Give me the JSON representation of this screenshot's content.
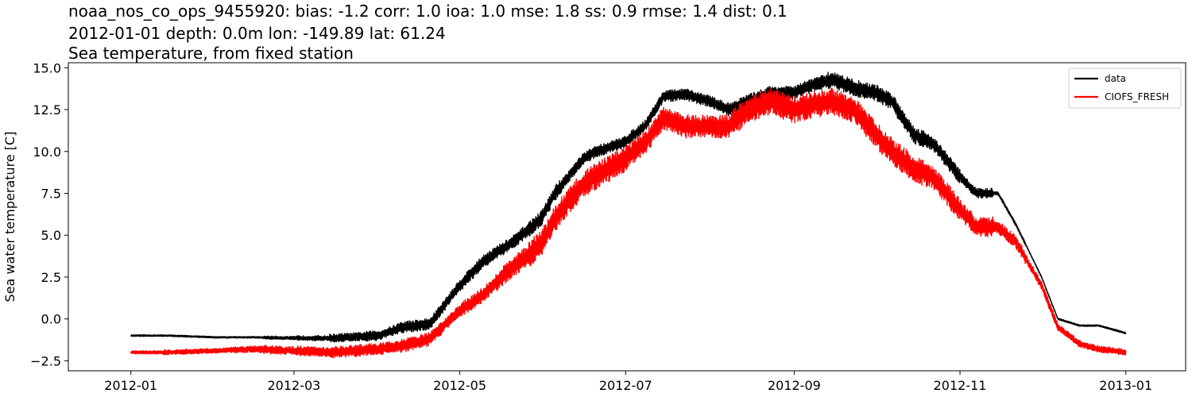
{
  "chart_data": {
    "type": "line",
    "title_lines": [
      "noaa_nos_co_ops_9455920: bias: -1.2  corr: 1.0  ioa: 1.0  mse: 1.8  ss: 0.9  rmse: 1.4  dist: 0.1",
      "2012-01-01 depth: 0.0m lon: -149.89 lat: 61.24",
      "Sea temperature, from fixed station"
    ],
    "xlabel": "",
    "ylabel": "Sea water temperature [C]",
    "xlim": [
      "2011-12-09",
      "2013-01-23"
    ],
    "ylim": [
      -3.1,
      15.3
    ],
    "x_ticks": [
      "2012-01",
      "2012-03",
      "2012-05",
      "2012-07",
      "2012-09",
      "2012-11",
      "2013-01"
    ],
    "y_ticks": [
      -2.5,
      0.0,
      2.5,
      5.0,
      7.5,
      10.0,
      12.5,
      15.0
    ],
    "y_tick_labels": [
      "−2.5",
      "0.0",
      "2.5",
      "5.0",
      "7.5",
      "10.0",
      "12.5",
      "15.0"
    ],
    "grid": false,
    "legend_position": "top-right",
    "series": [
      {
        "name": "data",
        "color": "#000000",
        "noise": [
          0.05,
          0.05,
          0.05,
          0.05,
          0.1,
          0.15,
          0.25,
          0.3,
          0.35,
          0.35,
          0.4,
          0.4,
          0.45,
          0.35,
          0.35,
          0.35,
          0.35,
          0.35,
          0.4,
          0.4,
          0.4,
          0.5,
          0.5,
          0.5,
          0.45,
          0.3,
          0.1,
          0.05,
          0.05,
          0.05
        ],
        "points": [
          [
            "2012-01-01",
            -1.0
          ],
          [
            "2012-01-15",
            -1.0
          ],
          [
            "2012-02-01",
            -1.1
          ],
          [
            "2012-02-15",
            -1.1
          ],
          [
            "2012-03-01",
            -1.15
          ],
          [
            "2012-03-15",
            -1.15
          ],
          [
            "2012-04-01",
            -1.0
          ],
          [
            "2012-04-10",
            -0.5
          ],
          [
            "2012-04-20",
            -0.3
          ],
          [
            "2012-05-01",
            2.0
          ],
          [
            "2012-05-10",
            3.5
          ],
          [
            "2012-05-20",
            4.5
          ],
          [
            "2012-05-31",
            6.0
          ],
          [
            "2012-06-05",
            7.5
          ],
          [
            "2012-06-10",
            8.5
          ],
          [
            "2012-06-15",
            9.5
          ],
          [
            "2012-06-20",
            10.0
          ],
          [
            "2012-06-30",
            10.5
          ],
          [
            "2012-07-08",
            11.5
          ],
          [
            "2012-07-15",
            13.3
          ],
          [
            "2012-07-23",
            13.4
          ],
          [
            "2012-08-01",
            13.0
          ],
          [
            "2012-08-08",
            12.5
          ],
          [
            "2012-08-15",
            13.0
          ],
          [
            "2012-08-23",
            13.5
          ],
          [
            "2012-09-01",
            13.5
          ],
          [
            "2012-09-08",
            14.0
          ],
          [
            "2012-09-15",
            14.3
          ],
          [
            "2012-09-23",
            13.8
          ],
          [
            "2012-10-01",
            13.5
          ],
          [
            "2012-10-07",
            13.0
          ],
          [
            "2012-10-15",
            11.0
          ],
          [
            "2012-10-22",
            10.5
          ],
          [
            "2012-11-01",
            8.5
          ],
          [
            "2012-11-07",
            7.5
          ],
          [
            "2012-11-15",
            7.5
          ],
          [
            "2012-11-22",
            5.5
          ],
          [
            "2012-12-01",
            2.5
          ],
          [
            "2012-12-07",
            0.0
          ],
          [
            "2012-12-15",
            -0.4
          ],
          [
            "2012-12-22",
            -0.4
          ],
          [
            "2013-01-01",
            -0.85
          ]
        ]
      },
      {
        "name": "CIOFS_FRESH",
        "color": "#ff0000",
        "noise": [
          0.1,
          0.15,
          0.15,
          0.2,
          0.25,
          0.3,
          0.35,
          0.35,
          0.4,
          0.4,
          0.45,
          0.6,
          0.8,
          0.8,
          0.8,
          0.7,
          0.7,
          0.7,
          0.8,
          0.8,
          0.8,
          0.8,
          0.8,
          0.8,
          0.7,
          0.6,
          0.4,
          0.25,
          0.2,
          0.2
        ],
        "points": [
          [
            "2012-01-01",
            -2.0
          ],
          [
            "2012-01-15",
            -2.0
          ],
          [
            "2012-02-01",
            -1.9
          ],
          [
            "2012-02-15",
            -1.8
          ],
          [
            "2012-03-01",
            -1.9
          ],
          [
            "2012-03-15",
            -2.0
          ],
          [
            "2012-04-01",
            -1.8
          ],
          [
            "2012-04-10",
            -1.6
          ],
          [
            "2012-04-20",
            -1.2
          ],
          [
            "2012-05-01",
            0.5
          ],
          [
            "2012-05-10",
            1.5
          ],
          [
            "2012-05-20",
            3.0
          ],
          [
            "2012-05-31",
            4.5
          ],
          [
            "2012-06-05",
            6.0
          ],
          [
            "2012-06-10",
            7.0
          ],
          [
            "2012-06-15",
            8.0
          ],
          [
            "2012-06-20",
            8.5
          ],
          [
            "2012-06-30",
            9.5
          ],
          [
            "2012-07-08",
            10.5
          ],
          [
            "2012-07-15",
            12.0
          ],
          [
            "2012-07-23",
            11.5
          ],
          [
            "2012-08-01",
            11.5
          ],
          [
            "2012-08-08",
            11.5
          ],
          [
            "2012-08-15",
            12.5
          ],
          [
            "2012-08-23",
            13.0
          ],
          [
            "2012-09-01",
            12.5
          ],
          [
            "2012-09-08",
            12.8
          ],
          [
            "2012-09-15",
            13.0
          ],
          [
            "2012-09-23",
            12.5
          ],
          [
            "2012-10-01",
            11.0
          ],
          [
            "2012-10-07",
            10.0
          ],
          [
            "2012-10-15",
            9.0
          ],
          [
            "2012-10-22",
            8.5
          ],
          [
            "2012-11-01",
            6.5
          ],
          [
            "2012-11-07",
            5.5
          ],
          [
            "2012-11-15",
            5.5
          ],
          [
            "2012-11-22",
            4.5
          ],
          [
            "2012-12-01",
            2.0
          ],
          [
            "2012-12-07",
            -0.5
          ],
          [
            "2012-12-15",
            -1.5
          ],
          [
            "2012-12-22",
            -1.8
          ],
          [
            "2013-01-01",
            -2.0
          ]
        ]
      }
    ]
  }
}
